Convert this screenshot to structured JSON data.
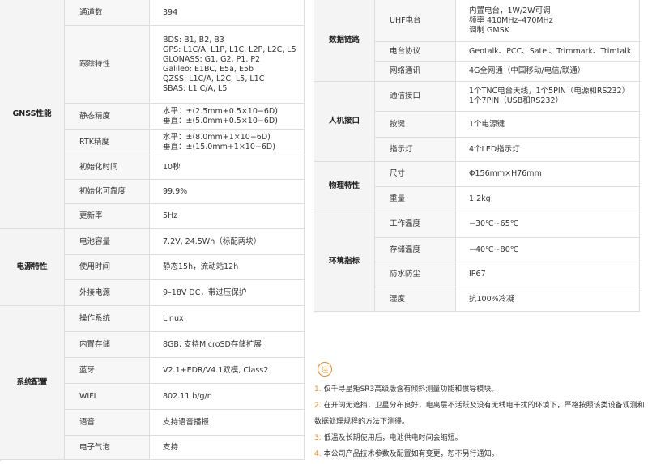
{
  "left": {
    "groups": [
      {
        "name": "GNSS性能",
        "rows": [
          {
            "label": "通道数",
            "lines": [
              "394"
            ]
          },
          {
            "label": "跟踪特性",
            "lines": [
              "BDS: B1, B2, B3",
              "GPS: L1C/A, L1P, L1C, L2P, L2C, L5",
              "GLONASS: G1, G2, P1, P2",
              "Galileo: E1BC, E5a, E5b",
              "QZSS: L1C/A, L2C, L5, L1C",
              "SBAS: L1 C/A, L5"
            ]
          },
          {
            "label": "静态精度",
            "lines": [
              "水平：±(2.5mm+0.5×10−6D)",
              "垂直：±(5.0mm+0.5×10−6D)"
            ]
          },
          {
            "label": "RTK精度",
            "lines": [
              "水平：±(8.0mm+1×10−6D)",
              "垂直：±(15.0mm+1×10−6D)"
            ]
          },
          {
            "label": "初始化时间",
            "lines": [
              "10秒"
            ]
          },
          {
            "label": "初始化可靠度",
            "lines": [
              "99.9%"
            ]
          },
          {
            "label": "更新率",
            "lines": [
              "5Hz"
            ]
          }
        ]
      },
      {
        "name": "电源特性",
        "rows": [
          {
            "label": "电池容量",
            "lines": [
              "7.2V, 24.5Wh（标配两块）"
            ]
          },
          {
            "label": "使用时间",
            "lines": [
              "静态15h，流动站12h"
            ]
          },
          {
            "label": "外接电源",
            "lines": [
              "9–18V DC，带过压保护"
            ]
          }
        ]
      },
      {
        "name": "系统配置",
        "rows": [
          {
            "label": "操作系统",
            "lines": [
              "Linux"
            ]
          },
          {
            "label": "内置存储",
            "lines": [
              "8GB, 支持MicroSD存储扩展"
            ]
          },
          {
            "label": "蓝牙",
            "lines": [
              "V2.1+EDR/V4.1双模, Class2"
            ]
          },
          {
            "label": "WIFI",
            "lines": [
              "802.11 b/g/n"
            ]
          },
          {
            "label": "语音",
            "lines": [
              "支持语音播报"
            ]
          },
          {
            "label": "电子气泡",
            "lines": [
              "支持"
            ]
          }
        ]
      }
    ]
  },
  "right": {
    "groups": [
      {
        "name": "数据链路",
        "rows": [
          {
            "label": "UHF电台",
            "lines": [
              "内置电台，1W/2W可调",
              "频率 410MHz–470MHz",
              "调制 GMSK"
            ]
          },
          {
            "label": "电台协议",
            "lines": [
              "Geotalk、PCC、Satel、Trimmark、Trimtalk"
            ]
          },
          {
            "label": "网络通讯",
            "lines": [
              "4G全网通（中国移动/电信/联通）"
            ]
          }
        ]
      },
      {
        "name": "人机接口",
        "rows": [
          {
            "label": "通信接口",
            "lines": [
              "1个TNC电台天线，1个5PIN（电源和RS232）",
              "1个7PIN（USB和RS232）"
            ]
          },
          {
            "label": "按键",
            "lines": [
              "1个电源键"
            ]
          },
          {
            "label": "指示灯",
            "lines": [
              "4个LED指示灯"
            ]
          }
        ]
      },
      {
        "name": "物理特性",
        "rows": [
          {
            "label": "尺寸",
            "lines": [
              "Φ156mm×H76mm"
            ]
          },
          {
            "label": "重量",
            "lines": [
              "1.2kg"
            ]
          }
        ]
      },
      {
        "name": "环境指标",
        "rows": [
          {
            "label": "工作温度",
            "lines": [
              "−30℃~65℃"
            ]
          },
          {
            "label": "存储温度",
            "lines": [
              "−40℃~80℃"
            ]
          },
          {
            "label": "防水防尘",
            "lines": [
              "IP67"
            ]
          },
          {
            "label": "湿度",
            "lines": [
              "抗100%冷凝"
            ]
          }
        ]
      }
    ]
  },
  "notes": {
    "icon": "注",
    "items": [
      {
        "num": "1.",
        "text": "仅千寻星矩SR3高级版含有倾斜测量功能和惯导模块。"
      },
      {
        "num": "2.",
        "text": "在开阔无遮挡，卫星分布良好，电离层不活跃及没有无线电干扰的环境下，严格按照该类设备观测和数据处理规程的方法下测得。"
      },
      {
        "num": "3.",
        "text": "低温及长期使用后，电池供电时间会缩短。"
      },
      {
        "num": "4.",
        "text": "本公司产品技术参数及配置如有变更，恕不另行通知。"
      }
    ]
  }
}
